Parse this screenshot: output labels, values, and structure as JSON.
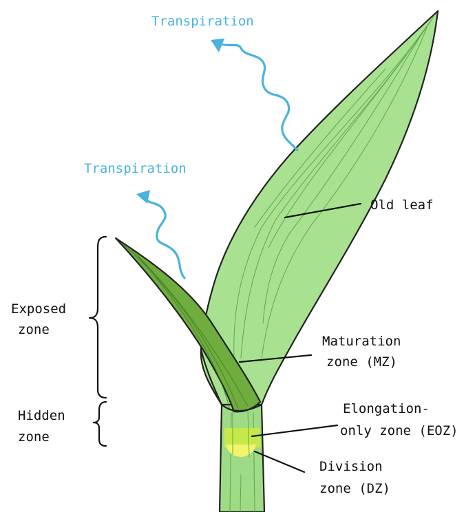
{
  "colors": {
    "old_leaf_fill": "#a8e290",
    "old_leaf_vein": "#4f9a3a",
    "young_leaf_fill": "#6fae3e",
    "young_leaf_vein": "#3f7a24",
    "stem_fill": "#9fdb86",
    "sheath_fill": "#a6e28f",
    "elongation_zone": "#c6e84a",
    "division_zone": "#f2f56b",
    "transpiration_arrow": "#48b3de",
    "label_text": "#111111"
  },
  "transpiration": [
    {
      "label": "Transpiration"
    },
    {
      "label": "Transpiration"
    }
  ],
  "labels": {
    "old_leaf": "Old leaf",
    "maturation_zone": [
      "Maturation",
      "zone (MZ)"
    ],
    "elongation_zone": [
      "Elongation-",
      "only zone (EOZ)"
    ],
    "division_zone": [
      "Division",
      "zone (DZ)"
    ],
    "exposed_zone": [
      "Exposed",
      "zone"
    ],
    "hidden_zone": [
      "Hidden",
      "zone"
    ]
  }
}
